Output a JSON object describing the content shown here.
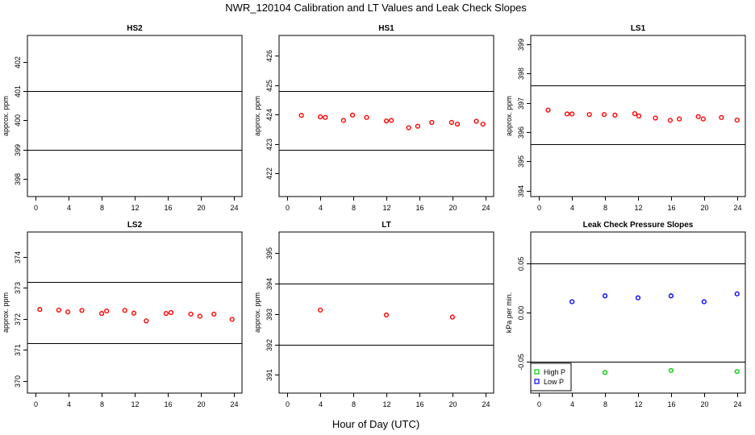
{
  "figure": {
    "title": "NWR_120104  Calibration and LT Values and Leak Check Slopes",
    "xlabel": "Hour of Day (UTC)"
  },
  "colors": {
    "red": "#ff0000",
    "green": "#00cc00",
    "blue": "#0000ff",
    "axis": "#000000"
  },
  "chart_data": [
    {
      "id": "hs2",
      "type": "scatter",
      "title": "HS2",
      "ylabel": "approx. ppm",
      "xlim": [
        -1,
        25
      ],
      "ylim": [
        397.4,
        402.9
      ],
      "xticks": [
        0,
        4,
        8,
        12,
        16,
        20,
        24
      ],
      "yticks": [
        398,
        399,
        400,
        401,
        402
      ],
      "ref_lines": [
        399,
        401
      ],
      "series": [
        {
          "color": "#ff0000",
          "x": [],
          "y": []
        }
      ]
    },
    {
      "id": "hs1",
      "type": "scatter",
      "title": "HS1",
      "ylabel": "approx. ppm",
      "xlim": [
        -1,
        25
      ],
      "ylim": [
        421.2,
        426.7
      ],
      "xticks": [
        0,
        4,
        8,
        12,
        16,
        20,
        24
      ],
      "yticks": [
        422,
        423,
        424,
        425,
        426
      ],
      "ref_lines": [
        422.8,
        424.8
      ],
      "series": [
        {
          "color": "#ff0000",
          "x": [
            1.7,
            4.0,
            4.6,
            6.8,
            7.9,
            9.6,
            12.0,
            12.6,
            14.7,
            15.8,
            17.5,
            19.9,
            20.6,
            22.9,
            23.7
          ],
          "y": [
            423.97,
            423.92,
            423.9,
            423.8,
            423.98,
            423.9,
            423.78,
            423.8,
            423.55,
            423.6,
            423.73,
            423.73,
            423.67,
            423.77,
            423.67
          ]
        }
      ]
    },
    {
      "id": "ls1",
      "type": "scatter",
      "title": "LS1",
      "ylabel": "approx. ppm",
      "xlim": [
        -1,
        25
      ],
      "ylim": [
        393.8,
        399.3
      ],
      "xticks": [
        0,
        4,
        8,
        12,
        16,
        20,
        24
      ],
      "yticks": [
        394,
        395,
        396,
        397,
        398,
        399
      ],
      "ref_lines": [
        395.6,
        397.6
      ],
      "series": [
        {
          "color": "#ff0000",
          "x": [
            1.1,
            3.4,
            4.0,
            6.1,
            7.9,
            9.2,
            11.6,
            12.1,
            14.1,
            15.9,
            17.0,
            19.3,
            19.9,
            22.1,
            24.0
          ],
          "y": [
            396.75,
            396.62,
            396.62,
            396.6,
            396.6,
            396.58,
            396.63,
            396.55,
            396.48,
            396.4,
            396.45,
            396.53,
            396.45,
            396.5,
            396.41
          ]
        }
      ]
    },
    {
      "id": "ls2",
      "type": "scatter",
      "title": "LS2",
      "ylabel": "approx. ppm",
      "xlim": [
        -1,
        25
      ],
      "ylim": [
        369.6,
        374.8
      ],
      "xticks": [
        0,
        4,
        8,
        12,
        16,
        20,
        24
      ],
      "yticks": [
        370,
        371,
        372,
        373,
        374
      ],
      "ref_lines": [
        371.2,
        373.2
      ],
      "series": [
        {
          "color": "#ff0000",
          "x": [
            0.5,
            2.8,
            3.9,
            5.6,
            8.0,
            8.6,
            10.8,
            11.9,
            13.4,
            15.8,
            16.4,
            18.8,
            19.9,
            21.6,
            23.8
          ],
          "y": [
            372.3,
            372.28,
            372.22,
            372.27,
            372.17,
            372.25,
            372.27,
            372.18,
            371.93,
            372.17,
            372.2,
            372.15,
            372.08,
            372.15,
            371.98
          ]
        }
      ]
    },
    {
      "id": "lt",
      "type": "scatter",
      "title": "LT",
      "ylabel": "approx. ppm",
      "xlim": [
        -1,
        25
      ],
      "ylim": [
        390.4,
        395.7
      ],
      "xticks": [
        0,
        4,
        8,
        12,
        16,
        20,
        24
      ],
      "yticks": [
        391,
        392,
        393,
        394,
        395
      ],
      "ref_lines": [
        392,
        394
      ],
      "series": [
        {
          "color": "#ff0000",
          "x": [
            4.0,
            12.0,
            20.0
          ],
          "y": [
            393.13,
            392.97,
            392.9
          ]
        }
      ]
    },
    {
      "id": "leak",
      "type": "scatter",
      "title": "Leak Check Pressure Slopes",
      "ylabel": "kPa per min.",
      "xlim": [
        -1,
        25
      ],
      "ylim": [
        -0.082,
        0.082
      ],
      "xticks": [
        0,
        4,
        8,
        12,
        16,
        20,
        24
      ],
      "yticks": [
        -0.05,
        0.0,
        0.05
      ],
      "ytick_labels": [
        "-0.05",
        "0.00",
        "0.05"
      ],
      "ref_lines": [
        -0.05,
        0.05
      ],
      "legend": {
        "position": "bottom-left",
        "entries": [
          "High P",
          "Low P"
        ]
      },
      "series": [
        {
          "name": "High P",
          "color": "#00cc00",
          "x": [
            8.0,
            16.0,
            24.0
          ],
          "y": [
            -0.061,
            -0.059,
            -0.06
          ]
        },
        {
          "name": "Low P",
          "color": "#0000ff",
          "x": [
            4.0,
            8.0,
            12.0,
            16.0,
            20.0,
            24.0
          ],
          "y": [
            0.011,
            0.017,
            0.015,
            0.017,
            0.011,
            0.019
          ]
        }
      ]
    }
  ]
}
